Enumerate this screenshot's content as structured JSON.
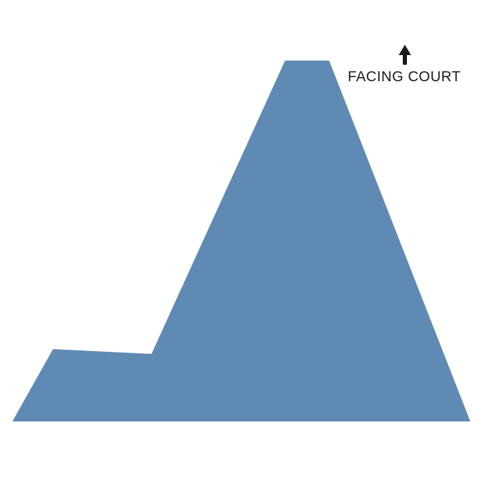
{
  "diagram": {
    "facing_label": "FACING COURT",
    "facing_direction_icon": "arrow-up-icon",
    "shape_fill": "#5F8AB3",
    "arrow_color": "#1a1a1a",
    "background": "#ffffff"
  }
}
